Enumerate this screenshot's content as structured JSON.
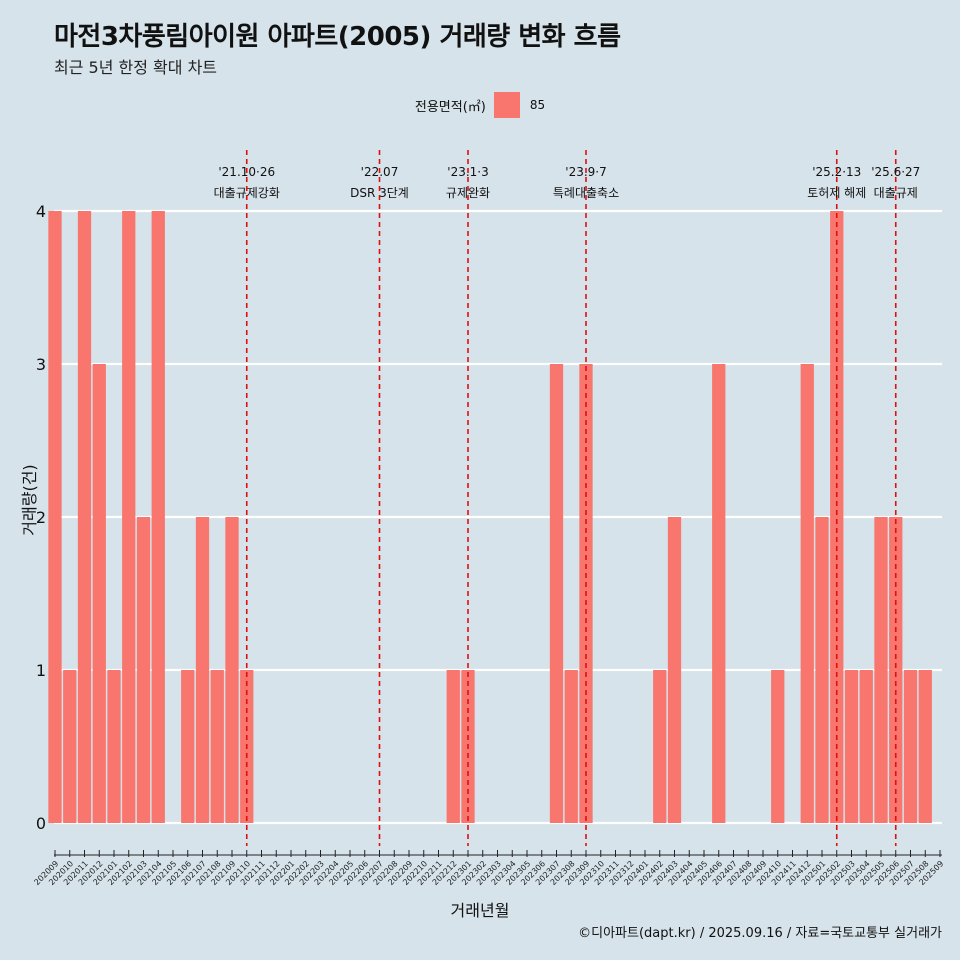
{
  "page": {
    "title": "마전3차풍림아이원 아파트(2005) 거래량 변화 흐름",
    "subtitle": "최근 5년 한정 확대 차트",
    "caption": "©디아파트(dapt.kr) / 2025.09.16 / 자료=국토교통부 실거래가"
  },
  "chart_data": {
    "type": "bar",
    "xlabel": "거래년월",
    "ylabel": "거래량(건)",
    "ylim": [
      0,
      4
    ],
    "yticks": [
      0,
      1,
      2,
      3,
      4
    ],
    "grid": "horizontal",
    "legend": {
      "title": "전용면적(㎡)",
      "placement": "top-center"
    },
    "categories": [
      "202009",
      "202010",
      "202011",
      "202012",
      "202101",
      "202102",
      "202103",
      "202104",
      "202105",
      "202106",
      "202107",
      "202108",
      "202109",
      "202110",
      "202111",
      "202112",
      "202201",
      "202202",
      "202203",
      "202204",
      "202205",
      "202206",
      "202207",
      "202208",
      "202209",
      "202210",
      "202211",
      "202212",
      "202301",
      "202302",
      "202303",
      "202304",
      "202305",
      "202306",
      "202307",
      "202308",
      "202309",
      "202310",
      "202311",
      "202312",
      "202401",
      "202402",
      "202403",
      "202404",
      "202405",
      "202406",
      "202407",
      "202408",
      "202409",
      "202410",
      "202411",
      "202412",
      "202501",
      "202502",
      "202503",
      "202504",
      "202505",
      "202506",
      "202507",
      "202508",
      "202509"
    ],
    "series": [
      {
        "name": "85",
        "color": "#f8766d",
        "values": [
          4,
          1,
          4,
          3,
          1,
          4,
          2,
          4,
          0,
          1,
          2,
          1,
          2,
          1,
          0,
          0,
          0,
          0,
          0,
          0,
          0,
          0,
          0,
          0,
          0,
          0,
          0,
          1,
          1,
          0,
          0,
          0,
          0,
          0,
          3,
          1,
          3,
          0,
          0,
          0,
          0,
          1,
          2,
          0,
          0,
          3,
          0,
          0,
          0,
          1,
          0,
          3,
          2,
          4,
          1,
          1,
          2,
          2,
          1,
          1,
          0
        ]
      }
    ],
    "annotations": [
      {
        "category": "202110",
        "date": "'21.10·26",
        "text": "대출규제강화"
      },
      {
        "category": "202207",
        "date": "'22.07",
        "text": "DSR 3단계"
      },
      {
        "category": "202301",
        "date": "'23.1·3",
        "text": "규제완화"
      },
      {
        "category": "202309",
        "date": "'23.9·7",
        "text": "특례대출축소"
      },
      {
        "category": "202502",
        "date": "'25.2·13",
        "text": "토허제 해제"
      },
      {
        "category": "202506",
        "date": "'25.6·27",
        "text": "대출규제"
      }
    ],
    "annotation_line_color": "#e01010"
  }
}
